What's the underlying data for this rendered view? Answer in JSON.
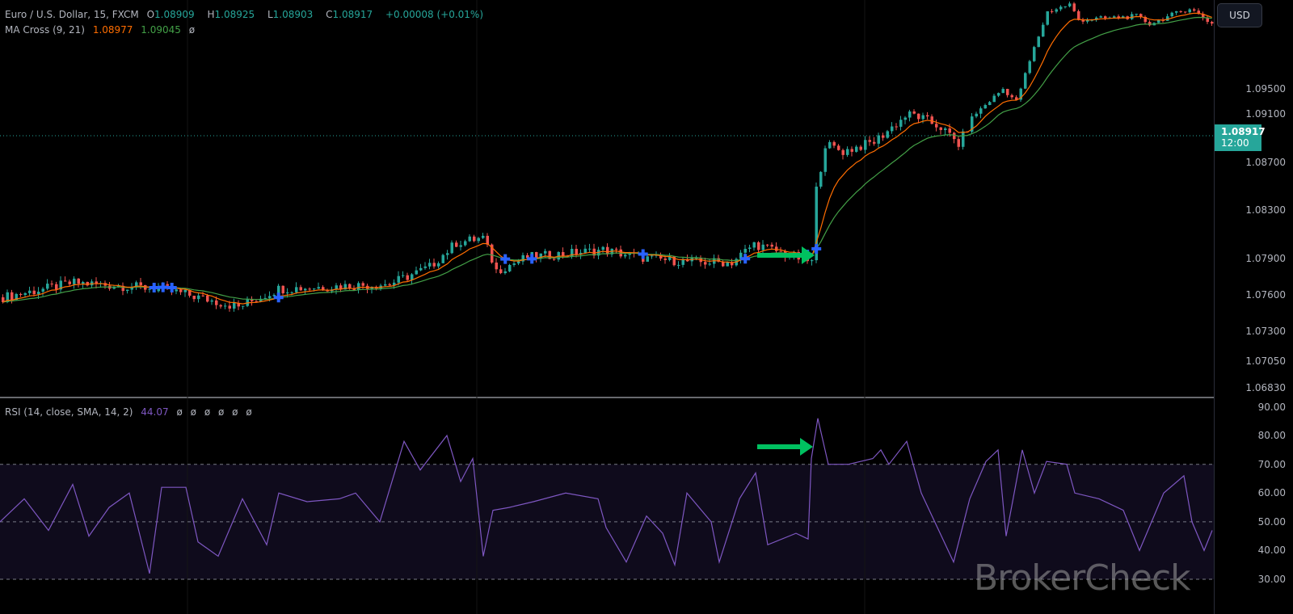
{
  "legend": {
    "symbol": "Euro / U.S. Dollar, 15, FXCM",
    "o_label": "O",
    "o": "1.08909",
    "h_label": "H",
    "h": "1.08925",
    "l_label": "L",
    "l": "1.08903",
    "c_label": "C",
    "c": "1.08917",
    "change": "+0.00008 (+0.01%)",
    "ma_name": "MA Cross (9, 21)",
    "ma_fast": "1.08977",
    "ma_slow": "1.09045",
    "ma_extra": "ø",
    "rsi_name": "RSI (14, close, SMA, 14, 2)",
    "rsi_value": "44.07",
    "rsi_extras": [
      "ø",
      "ø",
      "ø",
      "ø",
      "ø",
      "ø"
    ]
  },
  "currency_button": "USD",
  "last_price": {
    "price": "1.08917",
    "countdown": "12:00"
  },
  "watermark": "BrokerCheck",
  "colors": {
    "up": "#26a69a",
    "down": "#ef5350",
    "ma_fast": "#ff6d00",
    "ma_slow": "#43a047",
    "rsi": "#7e57c2",
    "cross": "#2962ff",
    "arrow": "#00c060"
  },
  "chart_data": [
    {
      "type": "candlestick",
      "title": "Euro / U.S. Dollar, 15, FXCM",
      "price_ticks": [
        "1.09500",
        "1.09100",
        "1.08700",
        "1.08300",
        "1.07900",
        "1.07600",
        "1.07300",
        "1.07050",
        "1.06830"
      ],
      "close_path": [
        [
          0,
          1.0758
        ],
        [
          16,
          1.077
        ],
        [
          36,
          1.0765
        ],
        [
          53,
          1.075
        ],
        [
          62,
          1.0765
        ],
        [
          87,
          1.0769
        ],
        [
          96,
          1.0783
        ],
        [
          102,
          1.0803
        ],
        [
          108,
          1.0807
        ],
        [
          111,
          1.078
        ],
        [
          118,
          1.0791
        ],
        [
          135,
          1.0797
        ],
        [
          145,
          1.079
        ],
        [
          156,
          1.0787
        ],
        [
          164,
          1.0787
        ],
        [
          169,
          1.0802
        ],
        [
          182,
          1.0787
        ],
        [
          183,
          1.0847
        ],
        [
          185,
          1.0885
        ],
        [
          189,
          1.0879
        ],
        [
          196,
          1.0887
        ],
        [
          204,
          1.0911
        ],
        [
          211,
          1.0899
        ],
        [
          215,
          1.0885
        ],
        [
          218,
          1.0905
        ],
        [
          225,
          1.095
        ],
        [
          228,
          1.093
        ],
        [
          232,
          1.1015
        ],
        [
          235,
          1.1073
        ],
        [
          240,
          1.1085
        ],
        [
          242,
          1.106
        ],
        [
          255,
          1.1066
        ],
        [
          258,
          1.1054
        ],
        [
          267,
          1.1079
        ],
        [
          272,
          1.1054
        ]
      ],
      "indicators": [
        "MA 9",
        "MA 21"
      ]
    },
    {
      "type": "line",
      "title": "RSI (14, close, SMA, 14, 2)",
      "ylim": [
        25,
        95
      ],
      "levels": [
        70,
        50,
        30
      ],
      "ticks": [
        "90.00",
        "80.00",
        "70.00",
        "60.00",
        "50.00",
        "40.00",
        "30.00"
      ],
      "points": [
        [
          0,
          50
        ],
        [
          30,
          58
        ],
        [
          60,
          47
        ],
        [
          90,
          63
        ],
        [
          110,
          45
        ],
        [
          135,
          55
        ],
        [
          160,
          60
        ],
        [
          185,
          32
        ],
        [
          200,
          62
        ],
        [
          230,
          62
        ],
        [
          245,
          43
        ],
        [
          270,
          38
        ],
        [
          300,
          58
        ],
        [
          330,
          42
        ],
        [
          345,
          60
        ],
        [
          380,
          57
        ],
        [
          420,
          58
        ],
        [
          440,
          60
        ],
        [
          470,
          50
        ],
        [
          500,
          78
        ],
        [
          520,
          68
        ],
        [
          553,
          80
        ],
        [
          570,
          64
        ],
        [
          585,
          72
        ],
        [
          598,
          38
        ],
        [
          610,
          54
        ],
        [
          630,
          55
        ],
        [
          660,
          57
        ],
        [
          700,
          60
        ],
        [
          740,
          58
        ],
        [
          750,
          48
        ],
        [
          775,
          36
        ],
        [
          800,
          52
        ],
        [
          820,
          46
        ],
        [
          835,
          35
        ],
        [
          850,
          60
        ],
        [
          880,
          50
        ],
        [
          890,
          36
        ],
        [
          915,
          58
        ],
        [
          935,
          67
        ],
        [
          950,
          42
        ],
        [
          985,
          46
        ],
        [
          1000,
          44
        ],
        [
          1004,
          72
        ],
        [
          1012,
          86
        ],
        [
          1025,
          70
        ],
        [
          1050,
          70
        ],
        [
          1080,
          72
        ],
        [
          1090,
          75
        ],
        [
          1100,
          70
        ],
        [
          1122,
          78
        ],
        [
          1140,
          60
        ],
        [
          1160,
          48
        ],
        [
          1180,
          36
        ],
        [
          1200,
          58
        ],
        [
          1220,
          71
        ],
        [
          1235,
          75
        ],
        [
          1245,
          45
        ],
        [
          1265,
          75
        ],
        [
          1280,
          60
        ],
        [
          1295,
          71
        ],
        [
          1320,
          70
        ],
        [
          1330,
          60
        ],
        [
          1360,
          58
        ],
        [
          1390,
          54
        ],
        [
          1410,
          40
        ],
        [
          1440,
          60
        ],
        [
          1465,
          66
        ],
        [
          1475,
          50
        ],
        [
          1490,
          40
        ],
        [
          1500,
          47
        ]
      ]
    }
  ]
}
